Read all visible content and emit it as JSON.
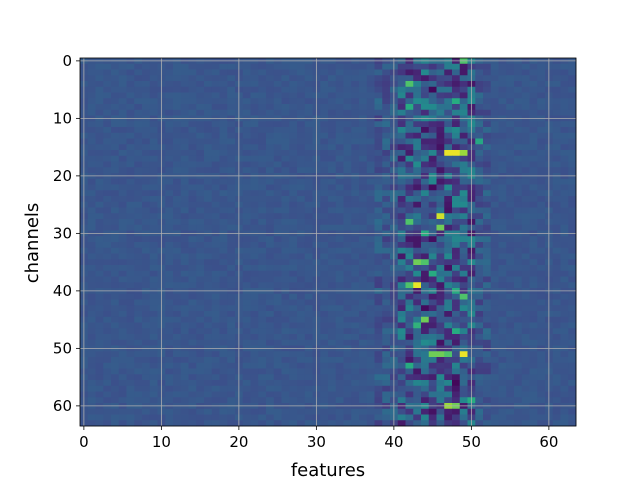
{
  "chart_data": {
    "type": "heatmap",
    "title": "",
    "xlabel": "features",
    "ylabel": "channels",
    "x_ticks": [
      "0",
      "10",
      "20",
      "30",
      "40",
      "50",
      "60"
    ],
    "y_ticks": [
      "0",
      "10",
      "20",
      "30",
      "40",
      "50",
      "60"
    ],
    "xlim": [
      -0.5,
      63.5
    ],
    "ylim": [
      63.5,
      -0.5
    ],
    "rows": 64,
    "cols": 64,
    "colormap": "viridis",
    "y_axis_inverted": true,
    "grid": true,
    "background_value": 0.27,
    "noise_band_columns": [
      38,
      52
    ],
    "hotspots": [
      {
        "row": 0,
        "col": 49,
        "value": 0.72
      },
      {
        "row": 4,
        "col": 42,
        "value": 0.72
      },
      {
        "row": 8,
        "col": 42,
        "value": 0.62
      },
      {
        "row": 7,
        "col": 48,
        "value": 0.62
      },
      {
        "row": 14,
        "col": 51,
        "value": 0.6
      },
      {
        "row": 16,
        "col": 47,
        "value": 0.97
      },
      {
        "row": 16,
        "col": 48,
        "value": 0.97
      },
      {
        "row": 16,
        "col": 49,
        "value": 0.85
      },
      {
        "row": 27,
        "col": 46,
        "value": 0.93
      },
      {
        "row": 29,
        "col": 46,
        "value": 0.78
      },
      {
        "row": 28,
        "col": 42,
        "value": 0.72
      },
      {
        "row": 30,
        "col": 44,
        "value": 0.62
      },
      {
        "row": 35,
        "col": 43,
        "value": 0.78
      },
      {
        "row": 35,
        "col": 44,
        "value": 0.72
      },
      {
        "row": 37,
        "col": 45,
        "value": 0.62
      },
      {
        "row": 39,
        "col": 43,
        "value": 0.97
      },
      {
        "row": 39,
        "col": 42,
        "value": 0.72
      },
      {
        "row": 40,
        "col": 48,
        "value": 0.62
      },
      {
        "row": 41,
        "col": 49,
        "value": 0.72
      },
      {
        "row": 45,
        "col": 44,
        "value": 0.78
      },
      {
        "row": 46,
        "col": 43,
        "value": 0.65
      },
      {
        "row": 47,
        "col": 48,
        "value": 0.62
      },
      {
        "row": 51,
        "col": 45,
        "value": 0.78
      },
      {
        "row": 51,
        "col": 46,
        "value": 0.78
      },
      {
        "row": 51,
        "col": 47,
        "value": 0.72
      },
      {
        "row": 51,
        "col": 49,
        "value": 0.97
      },
      {
        "row": 53,
        "col": 42,
        "value": 0.62
      },
      {
        "row": 60,
        "col": 47,
        "value": 0.85
      },
      {
        "row": 60,
        "col": 48,
        "value": 0.78
      },
      {
        "row": 59,
        "col": 50,
        "value": 0.62
      }
    ],
    "coldspots": [
      {
        "row": 5,
        "col": 45,
        "value": 0.02
      },
      {
        "row": 12,
        "col": 44,
        "value": 0.05
      },
      {
        "row": 15,
        "col": 46,
        "value": 0.05
      },
      {
        "row": 22,
        "col": 45,
        "value": 0.03
      },
      {
        "row": 26,
        "col": 47,
        "value": 0.05
      },
      {
        "row": 31,
        "col": 45,
        "value": 0.04
      },
      {
        "row": 36,
        "col": 47,
        "value": 0.05
      },
      {
        "row": 43,
        "col": 44,
        "value": 0.03
      },
      {
        "row": 49,
        "col": 46,
        "value": 0.05
      },
      {
        "row": 56,
        "col": 48,
        "value": 0.02
      },
      {
        "row": 61,
        "col": 45,
        "value": 0.05
      }
    ]
  }
}
